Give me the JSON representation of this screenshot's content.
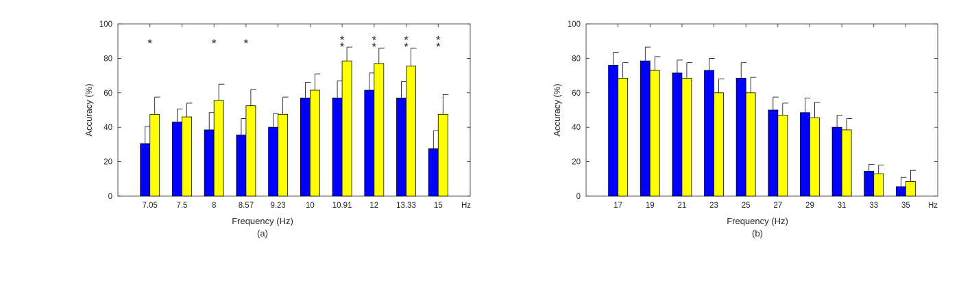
{
  "chart_data": [
    {
      "id": "a",
      "type": "bar",
      "categories": [
        "7.05",
        "7.5",
        "8",
        "8.57",
        "9.23",
        "10",
        "10.91",
        "12",
        "13.33",
        "15"
      ],
      "axis_unit_label": "Hz",
      "xlabel": "Frequency (Hz)",
      "ylabel": "Accuracy (%)",
      "caption": "(a)",
      "ylim": [
        0,
        100
      ],
      "yticks": [
        "0",
        "20",
        "40",
        "60",
        "80",
        "100"
      ],
      "grid": false,
      "legend": "none",
      "series": [
        {
          "color": "#0000ff",
          "values": [
            30.5,
            43,
            38.5,
            35.5,
            40,
            57,
            57,
            61.5,
            57,
            27.5
          ],
          "errors": [
            10,
            7.5,
            10,
            9.5,
            8,
            9,
            10,
            10,
            9.5,
            10.5
          ]
        },
        {
          "color": "#ffff00",
          "values": [
            47.5,
            46,
            55.5,
            52.5,
            47.5,
            61.5,
            78.5,
            77,
            75.5,
            47.5
          ],
          "errors": [
            10,
            8,
            9.5,
            9.5,
            10,
            9.5,
            8,
            9,
            10.5,
            11.5
          ]
        }
      ],
      "significance_markers": [
        "*",
        "",
        "*",
        "*",
        "",
        "",
        "**",
        "**",
        "**",
        "**"
      ],
      "significance_y": 90
    },
    {
      "id": "b",
      "type": "bar",
      "categories": [
        "17",
        "19",
        "21",
        "23",
        "25",
        "27",
        "29",
        "31",
        "33",
        "35"
      ],
      "axis_unit_label": "Hz",
      "xlabel": "Frequency (Hz)",
      "ylabel": "Accuracy (%)",
      "caption": "(b)",
      "ylim": [
        0,
        100
      ],
      "yticks": [
        "0",
        "20",
        "40",
        "60",
        "80",
        "100"
      ],
      "grid": false,
      "legend": "none",
      "series": [
        {
          "color": "#0000ff",
          "values": [
            76,
            78.5,
            71.5,
            73,
            68.5,
            50,
            48.5,
            40,
            14.5,
            5.5
          ],
          "errors": [
            7.5,
            8,
            7.5,
            7,
            9,
            7.5,
            8.5,
            7,
            4,
            5.5
          ]
        },
        {
          "color": "#ffff00",
          "values": [
            68.5,
            73,
            68.5,
            60,
            60,
            47,
            45.5,
            38.5,
            13,
            8.5
          ],
          "errors": [
            9,
            8,
            9,
            8,
            9,
            7,
            9,
            6.5,
            5,
            6.5
          ]
        }
      ],
      "significance_markers": [
        "",
        "",
        "",
        "",
        "",
        "",
        "",
        "",
        "",
        ""
      ],
      "significance_y": 90
    }
  ]
}
